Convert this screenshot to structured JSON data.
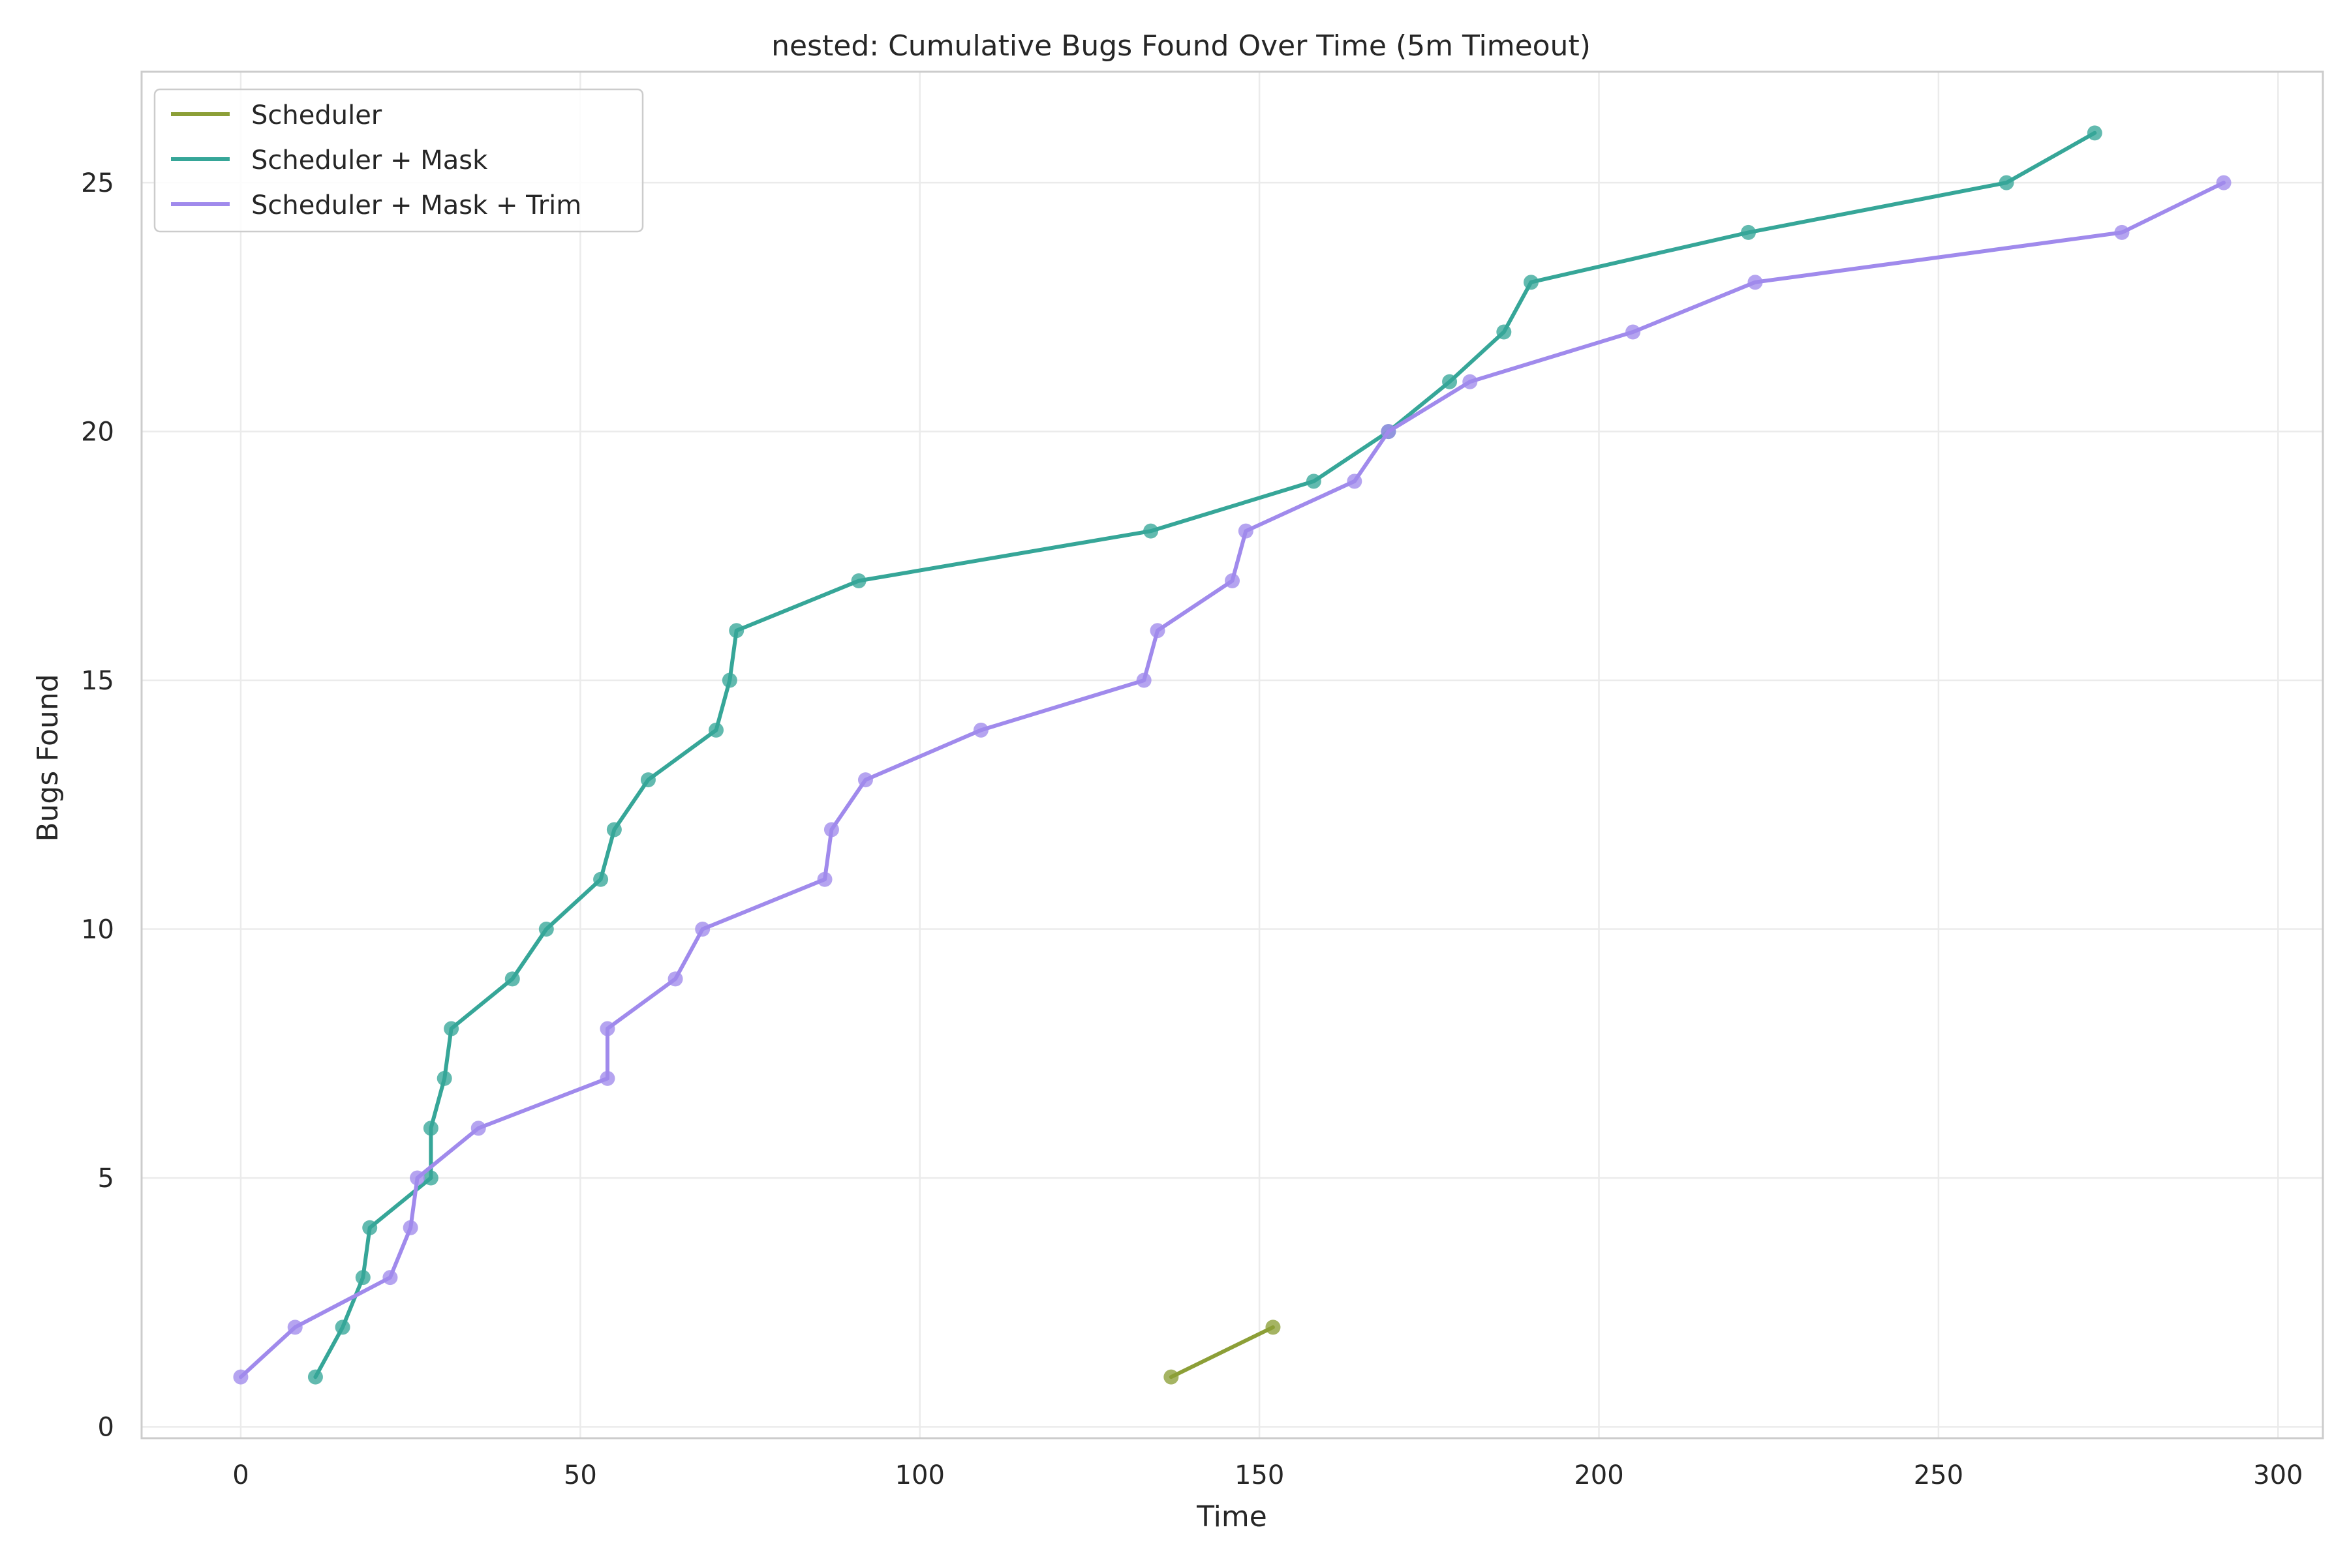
{
  "chart_data": {
    "type": "line",
    "title": "nested: Cumulative Bugs Found Over Time (5m Timeout)",
    "xlabel": "Time",
    "ylabel": "Bugs Found",
    "xlim": [
      -14.6,
      306.6
    ],
    "ylim": [
      -0.23,
      27.23
    ],
    "x_ticks": [
      0,
      50,
      100,
      150,
      200,
      250,
      300
    ],
    "y_ticks": [
      0,
      5,
      10,
      15,
      20,
      25
    ],
    "grid": true,
    "legend_position": "top-left",
    "series": [
      {
        "name": "Scheduler",
        "color": "#8c9f37",
        "x": [
          137,
          152
        ],
        "y": [
          1,
          2
        ]
      },
      {
        "name": "Scheduler + Mask",
        "color": "#36a698",
        "x": [
          11,
          15,
          18,
          19,
          28,
          28,
          30,
          31,
          40,
          45,
          53,
          55,
          60,
          70,
          72,
          73,
          91,
          134,
          158,
          169,
          178,
          186,
          190,
          222,
          260,
          273
        ],
        "y": [
          1,
          2,
          3,
          4,
          5,
          6,
          7,
          8,
          9,
          10,
          11,
          12,
          13,
          14,
          15,
          16,
          17,
          18,
          19,
          20,
          21,
          22,
          23,
          24,
          25,
          26
        ]
      },
      {
        "name": "Scheduler + Mask + Trim",
        "color": "#a08aec",
        "x": [
          0,
          8,
          22,
          25,
          26,
          35,
          54,
          54,
          64,
          68,
          86,
          87,
          92,
          109,
          133,
          135,
          146,
          148,
          164,
          169,
          181,
          205,
          223,
          277,
          292
        ],
        "y": [
          1,
          2,
          3,
          4,
          5,
          6,
          7,
          8,
          9,
          10,
          11,
          12,
          13,
          14,
          15,
          16,
          17,
          18,
          19,
          20,
          21,
          22,
          23,
          24,
          25
        ]
      }
    ]
  }
}
